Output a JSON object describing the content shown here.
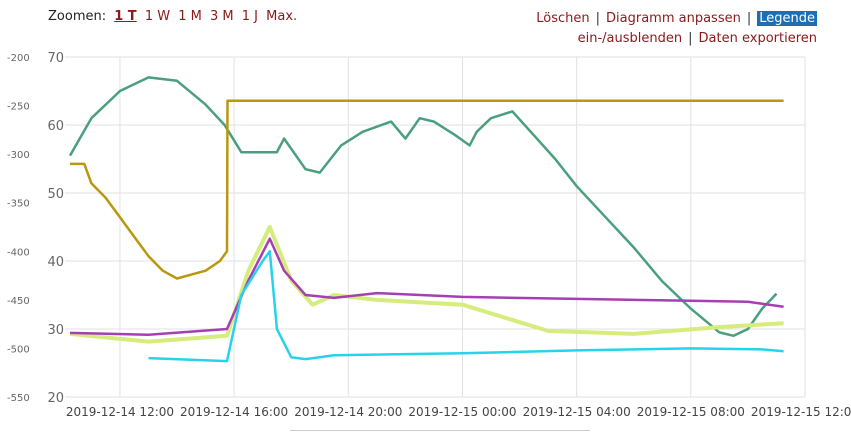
{
  "toolbar": {
    "zoom_label": "Zoomen:",
    "zoom_options": [
      "1 T",
      "1 W",
      "1 M",
      "3 M",
      "1 J",
      "Max."
    ],
    "zoom_active": "1 T",
    "delete": "Löschen",
    "fit": "Diagramm anpassen",
    "legend_hl": "Legende",
    "legend_rest": " ein-/ausblenden",
    "export": "Daten exportieren"
  },
  "colors": {
    "link": "#8b1a1a",
    "highlight": "#1a6fb5",
    "grid": "#e2e2e2",
    "series": [
      "#4a9f7e",
      "#b8980f",
      "#d6ec7c",
      "#a63fb3",
      "#27d3ea"
    ]
  },
  "chart_data": {
    "type": "line",
    "x_axis": {
      "min": "2019-12-14 10:15",
      "max": "2019-12-15 12:00",
      "ticks": [
        "2019-12-14 12:00",
        "2019-12-14 16:00",
        "2019-12-14 20:00",
        "2019-12-15 00:00",
        "2019-12-15 04:00",
        "2019-12-15 08:00",
        "2019-12-15 12:00"
      ]
    },
    "y_axis_left": {
      "min": -550,
      "max": -200,
      "ticks": [
        -200,
        -250,
        -300,
        -350,
        -400,
        -450,
        -500,
        -550
      ]
    },
    "y_axis_right": {
      "min": 20,
      "max": 70,
      "ticks": [
        70,
        60,
        50,
        40,
        30,
        20
      ]
    },
    "grid": true,
    "series": [
      {
        "axis": "right",
        "color": "#4a9f7e",
        "points": [
          [
            "2019-12-14 10:15",
            55.5
          ],
          [
            "2019-12-14 11:00",
            61
          ],
          [
            "2019-12-14 12:00",
            65
          ],
          [
            "2019-12-14 13:00",
            67
          ],
          [
            "2019-12-14 14:00",
            66.5
          ],
          [
            "2019-12-14 15:00",
            63
          ],
          [
            "2019-12-14 15:40",
            60
          ],
          [
            "2019-12-14 16:15",
            56
          ],
          [
            "2019-12-14 17:30",
            56
          ],
          [
            "2019-12-14 17:45",
            58
          ],
          [
            "2019-12-14 18:30",
            53.5
          ],
          [
            "2019-12-14 19:00",
            53
          ],
          [
            "2019-12-14 19:45",
            57
          ],
          [
            "2019-12-14 20:30",
            59
          ],
          [
            "2019-12-14 21:30",
            60.5
          ],
          [
            "2019-12-14 22:00",
            58
          ],
          [
            "2019-12-14 22:30",
            61
          ],
          [
            "2019-12-14 23:00",
            60.5
          ],
          [
            "2019-12-14 23:45",
            58.5
          ],
          [
            "2019-12-15 00:15",
            57
          ],
          [
            "2019-12-15 00:30",
            59
          ],
          [
            "2019-12-15 01:00",
            61
          ],
          [
            "2019-12-15 01:45",
            62
          ],
          [
            "2019-12-15 02:30",
            58.5
          ],
          [
            "2019-12-15 03:15",
            55
          ],
          [
            "2019-12-15 04:00",
            51
          ],
          [
            "2019-12-15 05:00",
            46.5
          ],
          [
            "2019-12-15 06:00",
            42
          ],
          [
            "2019-12-15 07:00",
            37
          ],
          [
            "2019-12-15 08:00",
            33
          ],
          [
            "2019-12-15 09:00",
            29.5
          ],
          [
            "2019-12-15 09:30",
            29
          ],
          [
            "2019-12-15 10:00",
            30
          ],
          [
            "2019-12-15 10:30",
            33
          ],
          [
            "2019-12-15 11:00",
            35.2
          ]
        ]
      },
      {
        "axis": "left",
        "color": "#b8980f",
        "points": [
          [
            "2019-12-14 10:15",
            -310
          ],
          [
            "2019-12-14 10:45",
            -310
          ],
          [
            "2019-12-14 11:00",
            -330
          ],
          [
            "2019-12-14 11:30",
            -345
          ],
          [
            "2019-12-14 12:00",
            -365
          ],
          [
            "2019-12-14 12:30",
            -385
          ],
          [
            "2019-12-14 13:00",
            -405
          ],
          [
            "2019-12-14 13:30",
            -420
          ],
          [
            "2019-12-14 14:00",
            -428
          ],
          [
            "2019-12-14 14:30",
            -424
          ],
          [
            "2019-12-14 15:00",
            -420
          ],
          [
            "2019-12-14 15:30",
            -410
          ],
          [
            "2019-12-14 15:45",
            -400
          ],
          [
            "2019-12-14 15:46",
            -245
          ],
          [
            "2019-12-15 11:15",
            -245
          ]
        ]
      },
      {
        "axis": "left",
        "color": "#d6ec7c",
        "points": [
          [
            "2019-12-14 10:15",
            -485
          ],
          [
            "2019-12-14 13:00",
            -493
          ],
          [
            "2019-12-14 15:45",
            -487
          ],
          [
            "2019-12-14 16:30",
            -420
          ],
          [
            "2019-12-14 17:15",
            -375
          ],
          [
            "2019-12-14 18:00",
            -430
          ],
          [
            "2019-12-14 18:45",
            -455
          ],
          [
            "2019-12-14 19:30",
            -445
          ],
          [
            "2019-12-14 21:00",
            -450
          ],
          [
            "2019-12-15 00:00",
            -455
          ],
          [
            "2019-12-15 03:00",
            -482
          ],
          [
            "2019-12-15 06:00",
            -485
          ],
          [
            "2019-12-15 09:00",
            -478
          ],
          [
            "2019-12-15 11:15",
            -474
          ]
        ]
      },
      {
        "axis": "left",
        "color": "#a63fb3",
        "points": [
          [
            "2019-12-14 10:15",
            -484
          ],
          [
            "2019-12-14 13:00",
            -486
          ],
          [
            "2019-12-14 15:45",
            -480
          ],
          [
            "2019-12-14 16:30",
            -430
          ],
          [
            "2019-12-14 17:15",
            -387
          ],
          [
            "2019-12-14 17:45",
            -420
          ],
          [
            "2019-12-14 18:30",
            -445
          ],
          [
            "2019-12-14 19:30",
            -448
          ],
          [
            "2019-12-14 21:00",
            -443
          ],
          [
            "2019-12-15 00:00",
            -447
          ],
          [
            "2019-12-15 04:00",
            -449
          ],
          [
            "2019-12-15 08:00",
            -451
          ],
          [
            "2019-12-15 10:00",
            -452
          ],
          [
            "2019-12-15 11:15",
            -457
          ]
        ]
      },
      {
        "axis": "left",
        "color": "#27d3ea",
        "points": [
          [
            "2019-12-14 13:00",
            -510
          ],
          [
            "2019-12-14 15:45",
            -513
          ],
          [
            "2019-12-14 16:15",
            -445
          ],
          [
            "2019-12-14 17:00",
            -410
          ],
          [
            "2019-12-14 17:15",
            -400
          ],
          [
            "2019-12-14 17:30",
            -480
          ],
          [
            "2019-12-14 18:00",
            -509
          ],
          [
            "2019-12-14 18:30",
            -511
          ],
          [
            "2019-12-14 19:00",
            -509
          ],
          [
            "2019-12-14 19:30",
            -507
          ],
          [
            "2019-12-15 00:00",
            -505
          ],
          [
            "2019-12-15 04:00",
            -502
          ],
          [
            "2019-12-15 08:00",
            -500
          ],
          [
            "2019-12-15 10:30",
            -501
          ],
          [
            "2019-12-15 11:15",
            -503
          ]
        ]
      }
    ]
  }
}
